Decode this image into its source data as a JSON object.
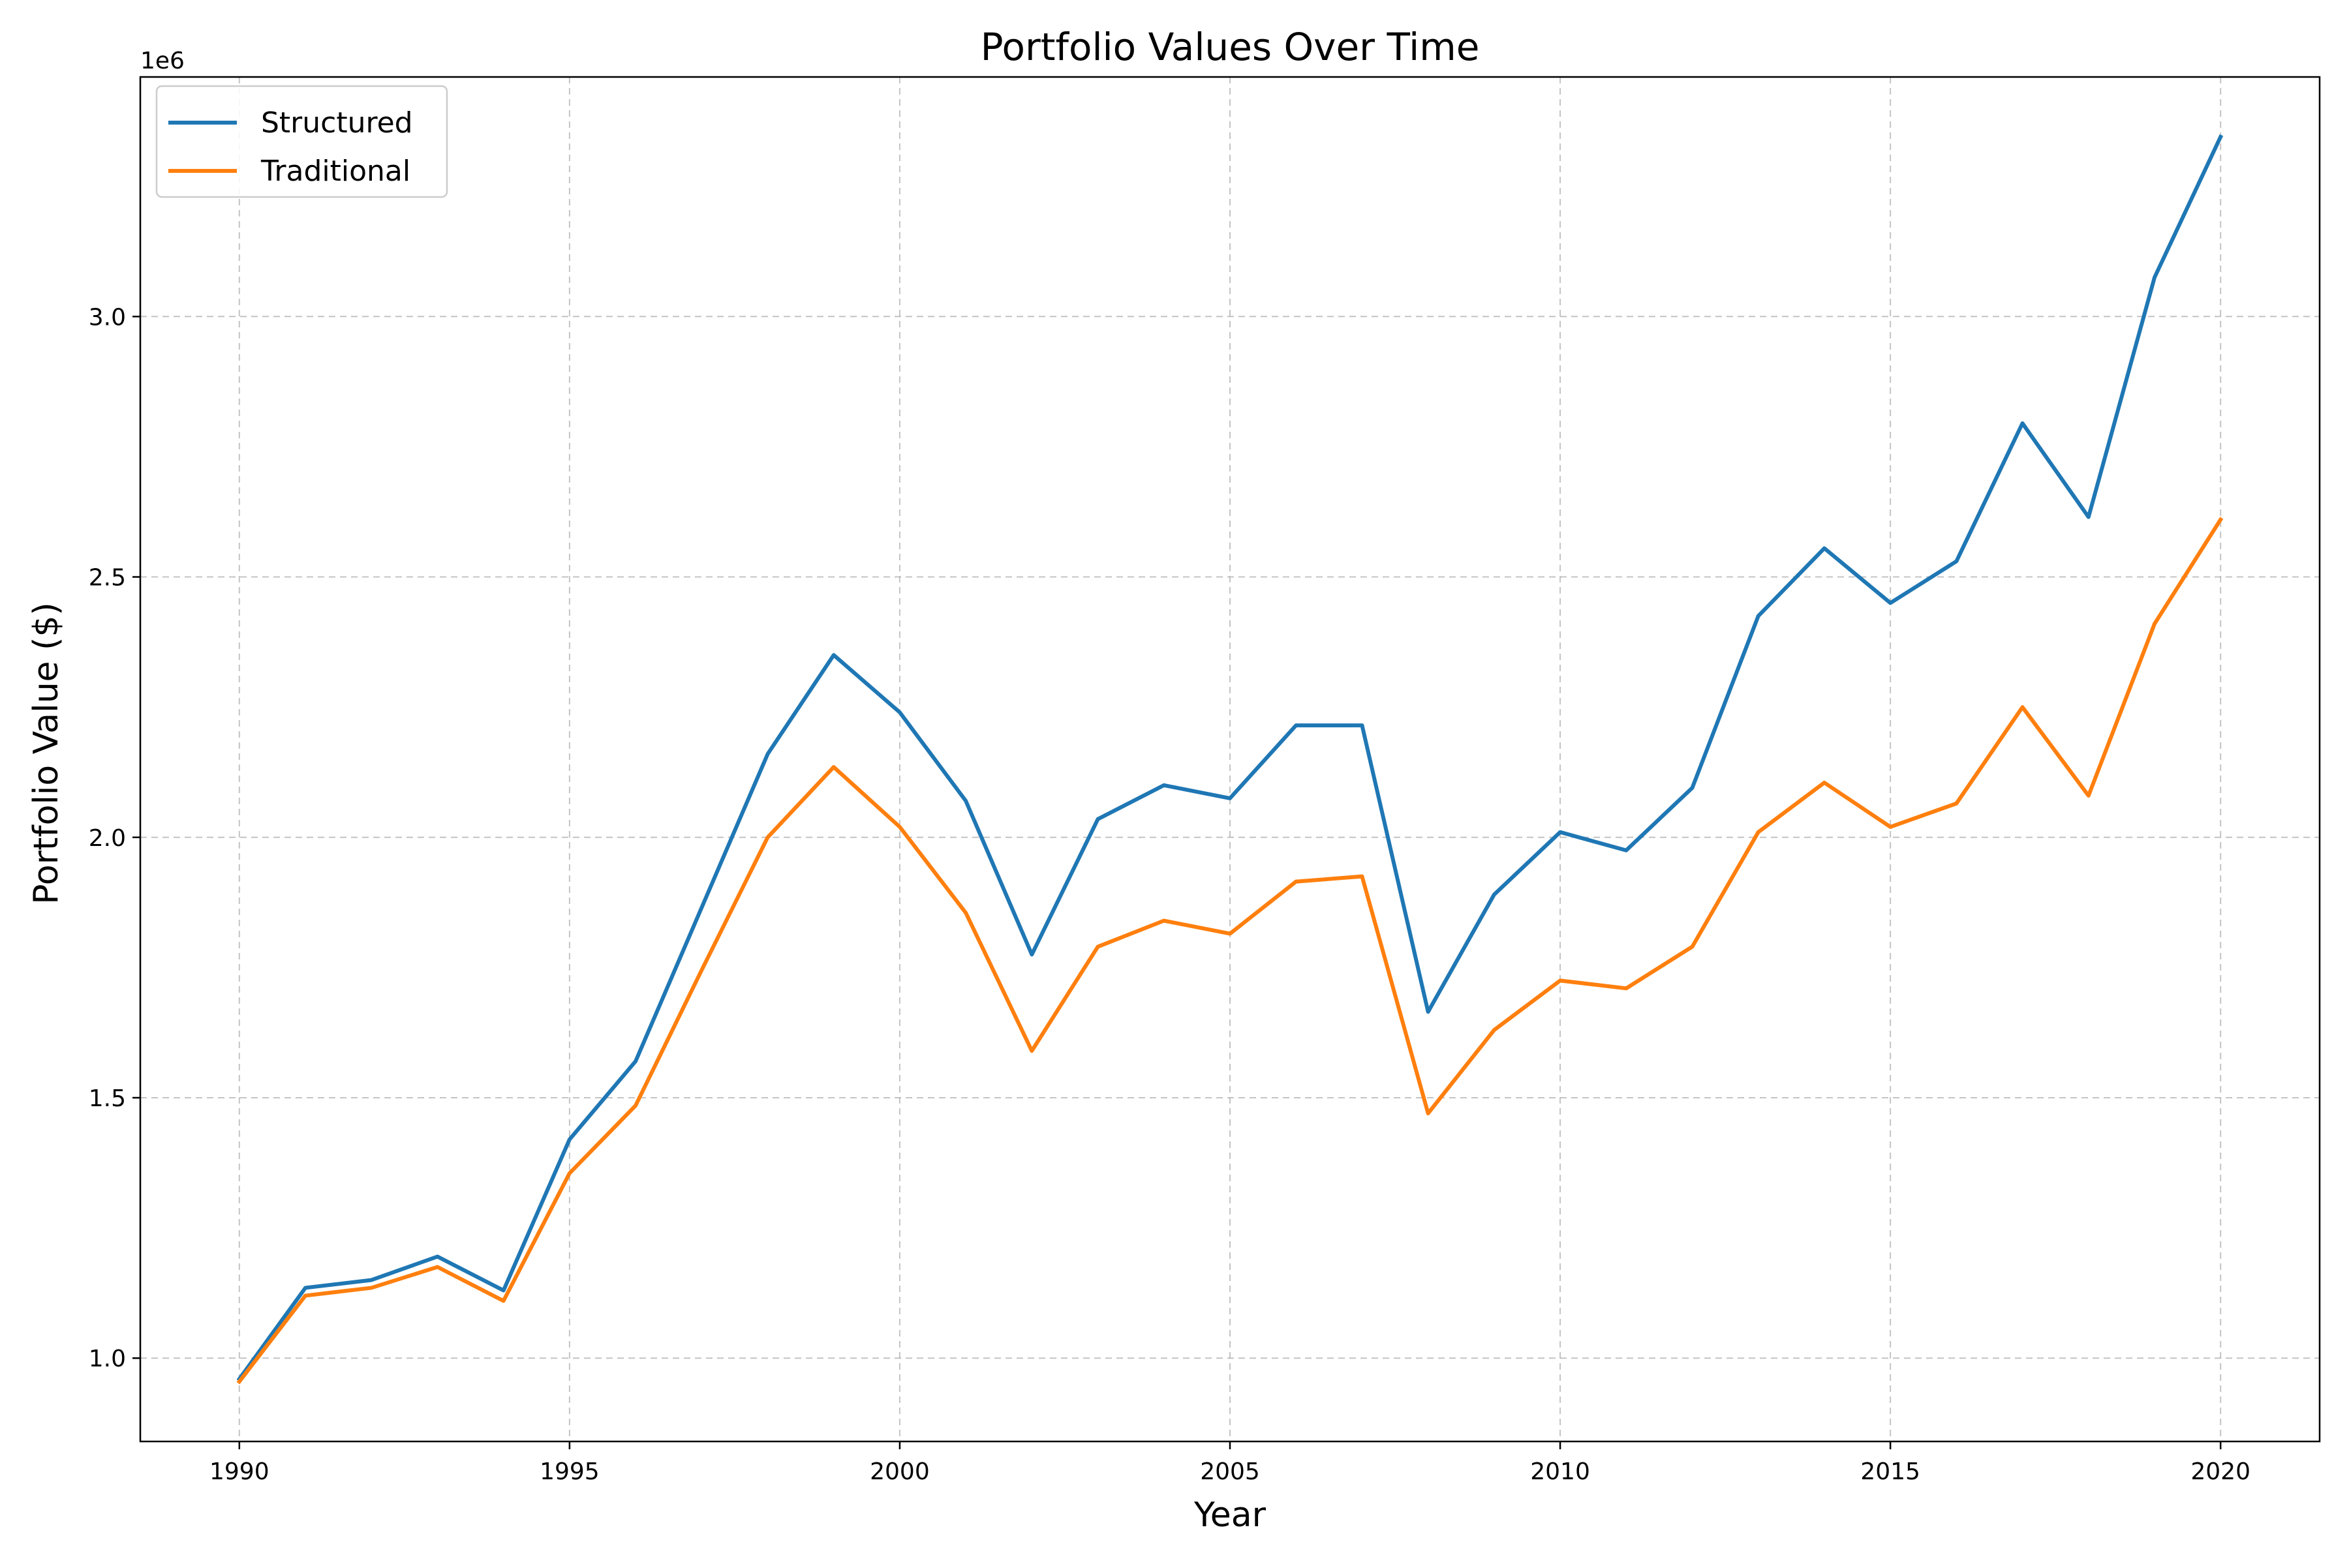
{
  "chart_data": {
    "type": "line",
    "title": "Portfolio Values Over Time",
    "xlabel": "Year",
    "ylabel": "Portfolio Value ($)",
    "y_offset_label": "1e6",
    "xlim": [
      1988.5,
      2021.5
    ],
    "ylim": [
      840000,
      3460000
    ],
    "x_ticks": [
      1990,
      1995,
      2000,
      2005,
      2010,
      2015,
      2020
    ],
    "y_ticks": [
      1000000,
      1500000,
      2000000,
      2500000,
      3000000
    ],
    "y_tick_labels": [
      "1.0",
      "1.5",
      "2.0",
      "2.5",
      "3.0"
    ],
    "grid": true,
    "legend_position": "upper left",
    "x": [
      1990,
      1991,
      1992,
      1993,
      1994,
      1995,
      1996,
      1997,
      1998,
      1999,
      2000,
      2001,
      2002,
      2003,
      2004,
      2005,
      2006,
      2007,
      2008,
      2009,
      2010,
      2011,
      2012,
      2013,
      2014,
      2015,
      2016,
      2017,
      2018,
      2019,
      2020
    ],
    "series": [
      {
        "name": "Structured",
        "color": "#1f77b4",
        "values": [
          960000,
          1135000,
          1150000,
          1195000,
          1130000,
          1420000,
          1570000,
          1865000,
          2160000,
          2350000,
          2240000,
          2070000,
          1775000,
          2035000,
          2100000,
          2075000,
          2215000,
          2215000,
          1665000,
          1890000,
          2010000,
          1975000,
          2095000,
          2425000,
          2555000,
          2450000,
          2530000,
          2795000,
          2615000,
          3075000,
          3345000
        ]
      },
      {
        "name": "Traditional",
        "color": "#ff7f0e",
        "values": [
          955000,
          1120000,
          1135000,
          1175000,
          1110000,
          1355000,
          1485000,
          1745000,
          2000000,
          2135000,
          2020000,
          1855000,
          1590000,
          1790000,
          1840000,
          1815000,
          1915000,
          1925000,
          1470000,
          1630000,
          1725000,
          1710000,
          1790000,
          2010000,
          2105000,
          2020000,
          2065000,
          2250000,
          2080000,
          2410000,
          2610000
        ]
      }
    ]
  }
}
